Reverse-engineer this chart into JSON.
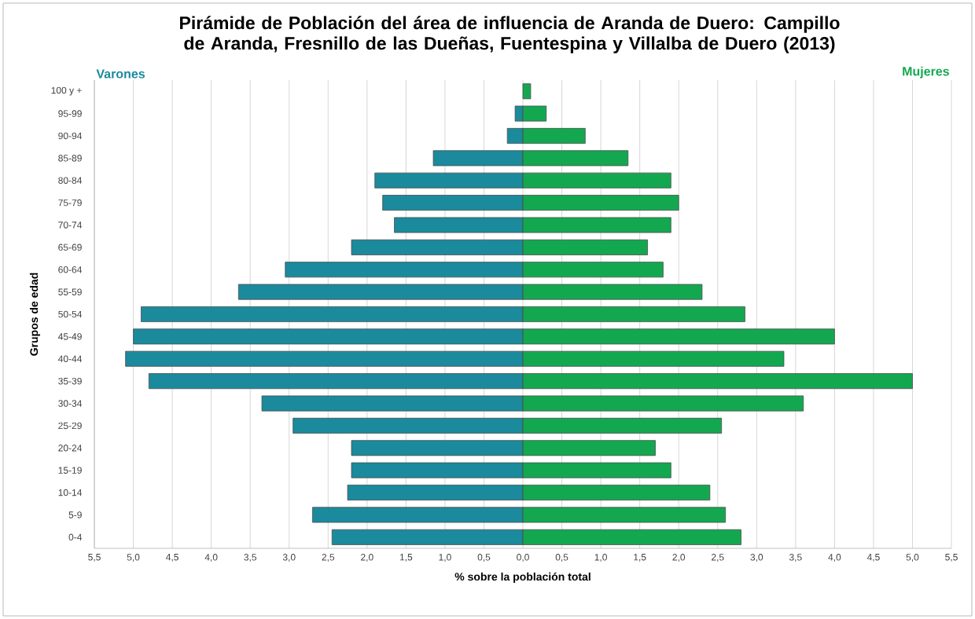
{
  "chart_data": {
    "type": "bar",
    "orientation": "horizontal",
    "stacked": true,
    "title": "Pirámide de Población del área de influencia de Aranda de Duero: Campillo de Aranda, Fresnillo de las Dueñas, Fuentespina y Villalba de Duero (2013)",
    "xlabel": "% sobre la población total",
    "ylabel": "Grupos de edad",
    "grid": "x",
    "categories": [
      "100 y +",
      "95-99",
      "90-94",
      "85-89",
      "80-84",
      "75-79",
      "70-74",
      "65-69",
      "60-64",
      "55-59",
      "50-54",
      "45-49",
      "40-44",
      "35-39",
      "30-34",
      "25-29",
      "20-24",
      "15-19",
      "10-14",
      "5-9",
      "0-4"
    ],
    "series": [
      {
        "name": "Varones",
        "color": "#1b8a9c",
        "values": [
          0,
          -0.1,
          -0.2,
          -1.15,
          -1.9,
          -1.8,
          -1.65,
          -2.2,
          -3.05,
          -3.65,
          -4.9,
          -5.0,
          -5.1,
          -4.8,
          -3.35,
          -2.95,
          -2.2,
          -2.2,
          -2.25,
          -2.7,
          -2.45
        ]
      },
      {
        "name": "Mujeres",
        "color": "#13a850",
        "values": [
          0.1,
          0.3,
          0.8,
          1.35,
          1.9,
          2.0,
          1.9,
          1.6,
          1.8,
          2.3,
          2.85,
          4.0,
          3.35,
          5.0,
          3.6,
          2.55,
          1.7,
          1.9,
          2.4,
          2.6,
          2.8
        ]
      }
    ],
    "xlim": [
      -5.5,
      5.5
    ],
    "xticks": [
      {
        "value": -5.5,
        "label": "5,5"
      },
      {
        "value": -5.0,
        "label": "5,0"
      },
      {
        "value": -4.5,
        "label": "4,5"
      },
      {
        "value": -4.0,
        "label": "4,0"
      },
      {
        "value": -3.5,
        "label": "3,5"
      },
      {
        "value": -3.0,
        "label": "3,0"
      },
      {
        "value": -2.5,
        "label": "2,5"
      },
      {
        "value": -2.0,
        "label": "2,0"
      },
      {
        "value": -1.5,
        "label": "1,5"
      },
      {
        "value": -1.0,
        "label": "1,0"
      },
      {
        "value": -0.5,
        "label": "0,5"
      },
      {
        "value": 0,
        "label": "0,0"
      },
      {
        "value": 0.5,
        "label": "0,5"
      },
      {
        "value": 1.0,
        "label": "1,0"
      },
      {
        "value": 1.5,
        "label": "1,5"
      },
      {
        "value": 2.0,
        "label": "2,0"
      },
      {
        "value": 2.5,
        "label": "2,5"
      },
      {
        "value": 3.0,
        "label": "3,0"
      },
      {
        "value": 3.5,
        "label": "3,5"
      },
      {
        "value": 4.0,
        "label": "4,0"
      },
      {
        "value": 4.5,
        "label": "4,5"
      },
      {
        "value": 5.0,
        "label": "5,0"
      },
      {
        "value": 5.5,
        "label": "5,5"
      }
    ]
  }
}
